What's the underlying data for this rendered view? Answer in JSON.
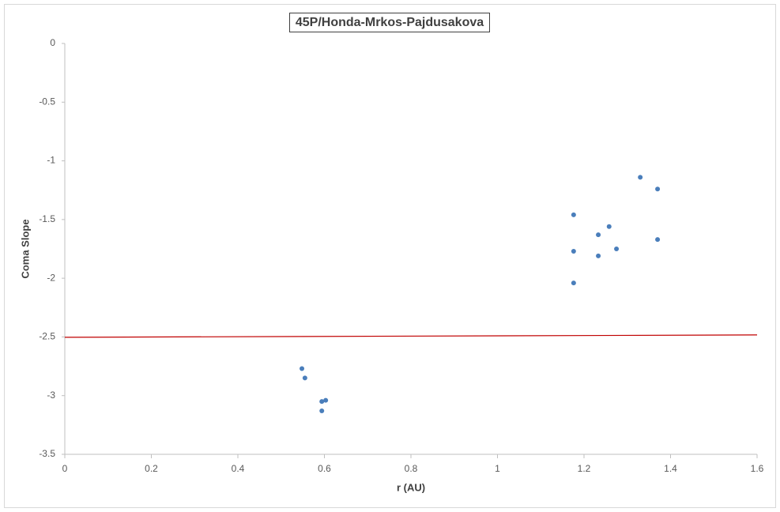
{
  "chart_data": {
    "type": "scatter",
    "title": "45P/Honda-Mrkos-Pajdusakova",
    "x_label": "r (AU)",
    "y_label": "Coma Slope",
    "series": [
      {
        "color": "#4a7ebb",
        "x": [
          0.548,
          0.555,
          0.594,
          0.603,
          0.594,
          1.176,
          1.176,
          1.176,
          1.233,
          1.233,
          1.258,
          1.275,
          1.33,
          1.37,
          1.37
        ],
        "values": [
          -2.77,
          -2.85,
          -3.05,
          -3.04,
          -3.13,
          -1.46,
          -1.77,
          -2.04,
          -1.63,
          -1.81,
          -1.56,
          -1.75,
          -1.14,
          -1.24,
          -1.67
        ]
      }
    ],
    "trendline": {
      "x": [
        0,
        1.6
      ],
      "values": [
        -2.503,
        -2.483
      ],
      "color": "#c00000"
    },
    "xlim": [
      0,
      1.6
    ],
    "xticks": [
      0,
      0.2,
      0.4,
      0.6,
      0.8,
      1,
      1.2,
      1.4,
      1.6
    ],
    "ylim": [
      -3.5,
      0
    ],
    "yticks": [
      0,
      -0.5,
      -1,
      -1.5,
      -2,
      -2.5,
      -3,
      -3.5
    ],
    "grid": false
  }
}
